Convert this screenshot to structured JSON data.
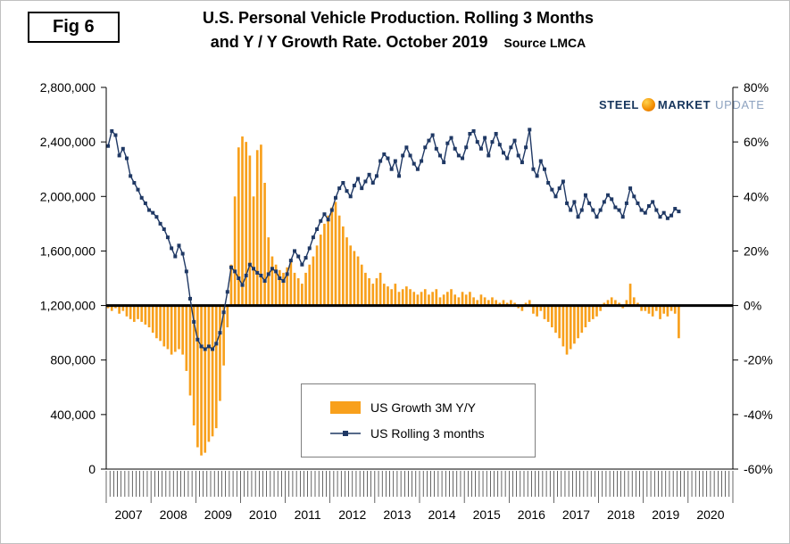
{
  "page": {
    "fig_label": "Fig 6",
    "title_line1": "U.S. Personal Vehicle Production. Rolling 3 Months",
    "title_line2": "and Y / Y Growth Rate. October 2019",
    "source": "Source LMCA"
  },
  "logo": {
    "word1": "STEEL",
    "word2": "MARKET",
    "word3": "UPDATE",
    "icon": "orange-sphere-icon"
  },
  "legend": {
    "bar_label": "US Growth 3M Y/Y",
    "line_label": "US Rolling 3 months"
  },
  "axes": {
    "left_ticks": [
      "2,800,000",
      "2,400,000",
      "2,000,000",
      "1,600,000",
      "1,200,000",
      "800,000",
      "400,000",
      "0"
    ],
    "right_ticks": [
      "80%",
      "60%",
      "40%",
      "20%",
      "0%",
      "-20%",
      "-40%",
      "-60%"
    ],
    "years": [
      "2007",
      "2008",
      "2009",
      "2010",
      "2011",
      "2012",
      "2013",
      "2014",
      "2015",
      "2016",
      "2017",
      "2018",
      "2019",
      "2020"
    ]
  },
  "colors": {
    "bar": "#F8A01C",
    "line": "#1F3864",
    "zero_line": "#000000",
    "axis": "#000000",
    "logo_blue": "#17365D",
    "logo_gray": "#8EA3C0"
  },
  "chart_data": {
    "type": "bar+line",
    "title": "U.S. Personal Vehicle Production. Rolling 3 Months and Y / Y Growth Rate. October 2019",
    "x_start": "2007-01",
    "x_end": "2019-10",
    "frequency": "monthly",
    "left_axis": {
      "min": 0,
      "max": 2800000,
      "tick_step": 400000
    },
    "right_axis": {
      "min": -60,
      "max": 80,
      "tick_step": 20
    },
    "legend_position": "bottom-center-inside",
    "grid": false,
    "series": [
      {
        "name": "US Growth 3M Y/Y",
        "type": "bar",
        "axis": "right",
        "unit": "percent",
        "values": [
          -1,
          -2,
          -1,
          -3,
          -2,
          -4,
          -5,
          -6,
          -5,
          -6,
          -7,
          -8,
          -10,
          -12,
          -13,
          -15,
          -16,
          -18,
          -17,
          -16,
          -18,
          -24,
          -33,
          -44,
          -52,
          -55,
          -54,
          -50,
          -48,
          -45,
          -35,
          -22,
          -8,
          15,
          40,
          58,
          62,
          60,
          55,
          40,
          57,
          59,
          45,
          25,
          18,
          15,
          13,
          12,
          14,
          16,
          12,
          10,
          8,
          12,
          15,
          18,
          22,
          26,
          30,
          33,
          36,
          38,
          33,
          29,
          25,
          22,
          20,
          18,
          15,
          12,
          10,
          8,
          10,
          12,
          8,
          7,
          6,
          8,
          5,
          6,
          7,
          6,
          5,
          4,
          5,
          6,
          4,
          5,
          6,
          3,
          4,
          5,
          6,
          4,
          3,
          5,
          4,
          5,
          3,
          2,
          4,
          3,
          2,
          3,
          2,
          1,
          2,
          1,
          2,
          1,
          -1,
          -2,
          1,
          2,
          -3,
          -4,
          -2,
          -5,
          -6,
          -8,
          -10,
          -12,
          -15,
          -18,
          -16,
          -14,
          -12,
          -10,
          -8,
          -6,
          -5,
          -4,
          -2,
          1,
          2,
          3,
          2,
          1,
          -1,
          2,
          8,
          3,
          1,
          -2,
          -2,
          -3,
          -4,
          -2,
          -5,
          -3,
          -4,
          -2,
          -3,
          -12
        ]
      },
      {
        "name": "US Rolling 3 months",
        "type": "line",
        "axis": "left",
        "unit": "vehicles",
        "values": [
          2370000,
          2480000,
          2450000,
          2300000,
          2350000,
          2280000,
          2150000,
          2100000,
          2050000,
          1990000,
          1950000,
          1900000,
          1880000,
          1850000,
          1800000,
          1760000,
          1700000,
          1620000,
          1560000,
          1640000,
          1580000,
          1450000,
          1250000,
          1080000,
          950000,
          900000,
          880000,
          900000,
          880000,
          920000,
          1000000,
          1150000,
          1300000,
          1480000,
          1450000,
          1400000,
          1350000,
          1420000,
          1500000,
          1470000,
          1440000,
          1420000,
          1380000,
          1430000,
          1470000,
          1450000,
          1400000,
          1380000,
          1430000,
          1530000,
          1600000,
          1560000,
          1500000,
          1550000,
          1620000,
          1700000,
          1760000,
          1820000,
          1870000,
          1830000,
          1900000,
          1990000,
          2060000,
          2100000,
          2040000,
          2000000,
          2080000,
          2130000,
          2060000,
          2110000,
          2160000,
          2100000,
          2150000,
          2260000,
          2310000,
          2280000,
          2200000,
          2260000,
          2150000,
          2300000,
          2360000,
          2300000,
          2240000,
          2200000,
          2260000,
          2360000,
          2410000,
          2450000,
          2350000,
          2300000,
          2250000,
          2390000,
          2430000,
          2350000,
          2300000,
          2280000,
          2360000,
          2460000,
          2480000,
          2400000,
          2350000,
          2430000,
          2300000,
          2400000,
          2460000,
          2380000,
          2320000,
          2280000,
          2360000,
          2410000,
          2300000,
          2250000,
          2360000,
          2490000,
          2200000,
          2150000,
          2260000,
          2200000,
          2100000,
          2050000,
          2000000,
          2060000,
          2110000,
          1950000,
          1900000,
          1960000,
          1850000,
          1900000,
          2010000,
          1950000,
          1900000,
          1850000,
          1900000,
          1960000,
          2010000,
          1980000,
          1920000,
          1900000,
          1850000,
          1950000,
          2060000,
          2000000,
          1950000,
          1900000,
          1880000,
          1930000,
          1960000,
          1900000,
          1850000,
          1880000,
          1840000,
          1860000,
          1910000,
          1890000
        ]
      }
    ]
  }
}
